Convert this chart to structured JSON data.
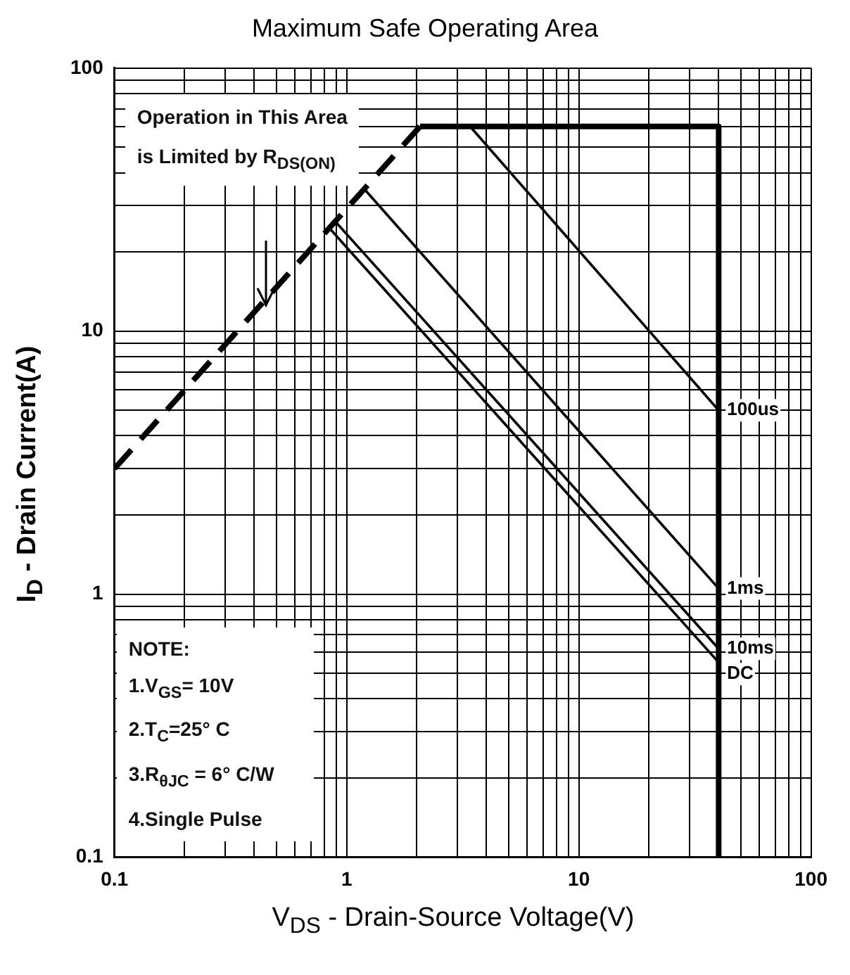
{
  "chart_data": {
    "type": "line",
    "title": "Maximum Safe Operating Area",
    "xlabel": "V$_{DS}$ - Drain-Source Voltage(V)",
    "ylabel": "I$_{D}$ - Drain Current(A)",
    "log": "xy",
    "xlim": [
      0.1,
      100
    ],
    "ylim": [
      0.1,
      100
    ],
    "xticks": [
      0.1,
      {
        "value": 0.2,
        "label": null
      },
      {
        "value": 0.3,
        "label": null
      },
      {
        "value": 0.4,
        "label": null
      },
      {
        "value": 0.5,
        "label": null
      },
      {
        "value": 0.6,
        "label": null
      },
      {
        "value": 0.7,
        "label": null
      },
      {
        "value": 0.8,
        "label": null
      },
      {
        "value": 0.9,
        "label": null
      },
      1,
      {
        "value": 2,
        "label": null
      },
      {
        "value": 3,
        "label": null
      },
      {
        "value": 4,
        "label": null
      },
      {
        "value": 5,
        "label": null
      },
      {
        "value": 6,
        "label": null
      },
      {
        "value": 7,
        "label": null
      },
      {
        "value": 8,
        "label": null
      },
      {
        "value": 9,
        "label": null
      },
      10,
      {
        "value": 20,
        "label": null
      },
      {
        "value": 30,
        "label": null
      },
      {
        "value": 40,
        "label": null
      },
      {
        "value": 50,
        "label": null
      },
      {
        "value": 60,
        "label": null
      },
      {
        "value": 70,
        "label": null
      },
      {
        "value": 80,
        "label": null
      },
      {
        "value": 90,
        "label": null
      },
      100
    ],
    "yticks": [
      0.1,
      {
        "value": 0.2,
        "label": null
      },
      {
        "value": 0.3,
        "label": null
      },
      {
        "value": 0.4,
        "label": null
      },
      {
        "value": 0.5,
        "label": null
      },
      {
        "value": 0.6,
        "label": null
      },
      {
        "value": 0.7,
        "label": null
      },
      {
        "value": 0.8,
        "label": null
      },
      {
        "value": 0.9,
        "label": null
      },
      1,
      {
        "value": 2,
        "label": null
      },
      {
        "value": 3,
        "label": null
      },
      {
        "value": 4,
        "label": null
      },
      {
        "value": 5,
        "label": null
      },
      {
        "value": 6,
        "label": null
      },
      {
        "value": 7,
        "label": null
      },
      {
        "value": 8,
        "label": null
      },
      {
        "value": 9,
        "label": null
      },
      10,
      {
        "value": 20,
        "label": null
      },
      {
        "value": 30,
        "label": null
      },
      {
        "value": 40,
        "label": null
      },
      {
        "value": 50,
        "label": null
      },
      {
        "value": 60,
        "label": null
      },
      {
        "value": 70,
        "label": null
      },
      {
        "value": 80,
        "label": null
      },
      {
        "value": 90,
        "label": null
      },
      100
    ],
    "grid": true,
    "legend": false,
    "marker": "none",
    "series": [
      {
        "color": "#000000",
        "line_style": "dashed",
        "x": [
          0.1,
          2.07
        ],
        "values": [
          3,
          60
        ]
      },
      {
        "color": "#000000",
        "x": [
          2.07,
          40,
          40
        ],
        "values": [
          60,
          60,
          0.1
        ]
      },
      {
        "name": "100us",
        "color": "#000000",
        "x": [
          3.4,
          40
        ],
        "values": [
          60,
          5
        ]
      },
      {
        "name": "1ms",
        "color": "#000000",
        "x": [
          1.18,
          40
        ],
        "values": [
          35,
          1.05
        ]
      },
      {
        "name": "10ms",
        "color": "#000000",
        "x": [
          0.88,
          40
        ],
        "values": [
          26.5,
          0.62
        ]
      },
      {
        "name": "DC",
        "color": "#000000",
        "x": [
          0.83,
          40
        ],
        "values": [
          25,
          0.55
        ]
      }
    ],
    "annotations": [
      "Operation in This Area\nis Limited by R$_{DS(ON)}$",
      "NOTE:\n1.V$_{GS}$= 10V\n2.T$_{C}$=25° C\n3.R$_{θJC}$ = 6° C/W\n4.Single Pulse"
    ]
  }
}
